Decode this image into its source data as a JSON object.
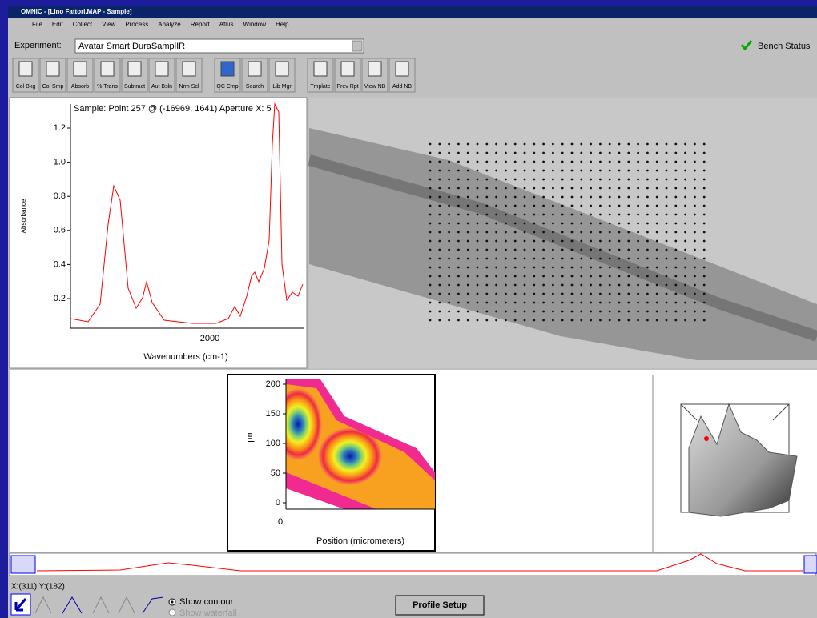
{
  "window": {
    "title": "OMNIC - [Lino Fattori.MAP - Sample]"
  },
  "menu": [
    "File",
    "Edit",
    "Collect",
    "View",
    "Process",
    "Analyze",
    "Report",
    "Atlus",
    "Window",
    "Help"
  ],
  "experiment": {
    "label": "Experiment:",
    "value": "Avatar Smart DuraSamplIR",
    "bench": "Bench Status"
  },
  "toolbar": [
    "Col Bkg",
    "Col Smp",
    "Absorb",
    "% Trans",
    "Subtract",
    "Aut Bsln",
    "Nrm Scl",
    "QC Cmp",
    "Search",
    "Lib Mgr",
    "Tmplate",
    "Prev Rpt",
    "View NB",
    "Add NB"
  ],
  "spectrum": {
    "title": "Sample: Point 257 @ (-16969, 1641) Aperture X: 5",
    "ylabel": "Absorbance",
    "xlabel": "Wavenumbers (cm-1)",
    "yticks": [
      "1.2",
      "1.0",
      "0.8",
      "0.6",
      "0.4",
      "0.2"
    ],
    "xticks": [
      "2000"
    ]
  },
  "contour": {
    "ylabel": "µm",
    "xlabel": "Position (micrometers)",
    "yticks": [
      "200",
      "150",
      "100",
      "50",
      "0"
    ],
    "xticks": [
      "0"
    ]
  },
  "status": {
    "coords": "X:(311) Y:(182)",
    "options": [
      "Show contour",
      "Show waterfall"
    ],
    "button": "Profile Setup"
  }
}
